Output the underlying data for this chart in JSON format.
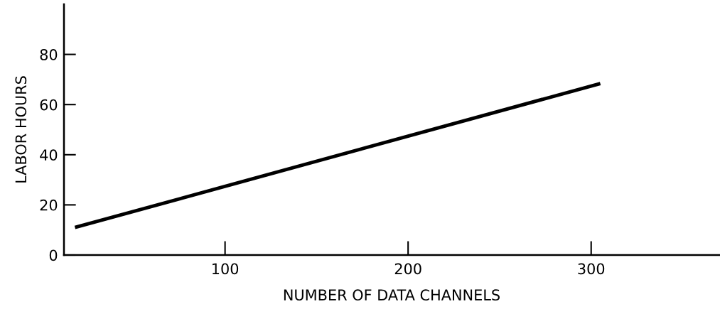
{
  "chart_data": {
    "type": "line",
    "xlabel": "NUMBER OF DATA CHANNELS",
    "ylabel": "LABOR HOURS",
    "x": [
      18,
      305
    ],
    "series": [
      {
        "color": "#000000",
        "values": [
          11,
          68.4
        ]
      }
    ],
    "xlim": [
      12,
      370
    ],
    "ylim": [
      0,
      100
    ],
    "xticks": [
      100,
      200,
      300
    ],
    "yticks": [
      0,
      20,
      40,
      60,
      80
    ],
    "grid": false,
    "legend": false,
    "marker": "none",
    "line_style": "solid"
  }
}
